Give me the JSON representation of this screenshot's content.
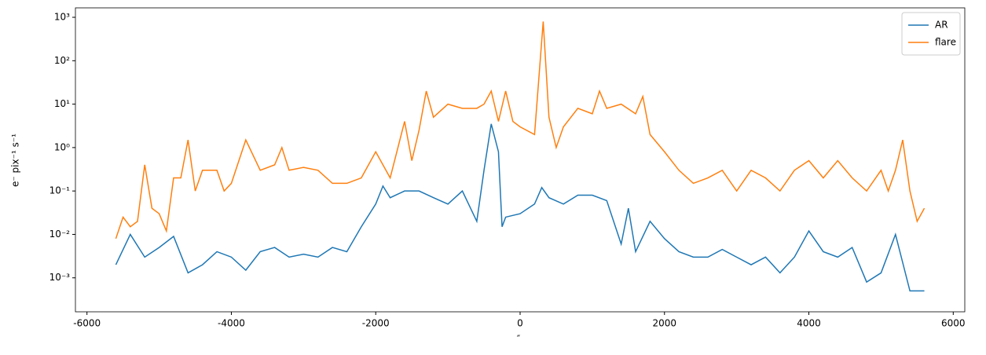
{
  "chart_data": {
    "type": "line",
    "yscale": "log",
    "xlabel": "″",
    "ylabel": "e⁻ pix⁻¹ s⁻¹",
    "legend": "upper right",
    "xlim": [
      -6160,
      6160
    ],
    "xticks": [
      -6000,
      -4000,
      -2000,
      0,
      2000,
      4000,
      6000
    ],
    "ylim": [
      0.000165,
      1650
    ],
    "yticks": [
      {
        "value": 0.001,
        "label": "10⁻³"
      },
      {
        "value": 0.01,
        "label": "10⁻²"
      },
      {
        "value": 0.1,
        "label": "10⁻¹"
      },
      {
        "value": 1,
        "label": "10⁰"
      },
      {
        "value": 10,
        "label": "10¹"
      },
      {
        "value": 100,
        "label": "10²"
      },
      {
        "value": 1000,
        "label": "10³"
      }
    ],
    "series": [
      {
        "name": "AR",
        "color": "#1f77b4",
        "x": [
          -5600,
          -5400,
          -5200,
          -5000,
          -4800,
          -4600,
          -4400,
          -4200,
          -4000,
          -3800,
          -3600,
          -3400,
          -3200,
          -3000,
          -2800,
          -2600,
          -2400,
          -2200,
          -2000,
          -1900,
          -1800,
          -1600,
          -1400,
          -1200,
          -1000,
          -800,
          -600,
          -500,
          -400,
          -300,
          -250,
          -200,
          0,
          200,
          300,
          400,
          600,
          800,
          1000,
          1200,
          1400,
          1500,
          1600,
          1800,
          2000,
          2200,
          2400,
          2600,
          2800,
          3000,
          3200,
          3400,
          3600,
          3800,
          4000,
          4200,
          4400,
          4600,
          4800,
          5000,
          5200,
          5400,
          5600
        ],
        "values": [
          0.002,
          0.01,
          0.003,
          0.005,
          0.009,
          0.0013,
          0.002,
          0.004,
          0.003,
          0.0015,
          0.004,
          0.005,
          0.003,
          0.0035,
          0.003,
          0.005,
          0.004,
          0.015,
          0.05,
          0.13,
          0.07,
          0.1,
          0.1,
          0.07,
          0.05,
          0.1,
          0.02,
          0.3,
          3.5,
          0.8,
          0.015,
          0.025,
          0.03,
          0.05,
          0.12,
          0.07,
          0.05,
          0.08,
          0.08,
          0.06,
          0.006,
          0.04,
          0.004,
          0.02,
          0.008,
          0.004,
          0.003,
          0.003,
          0.0045,
          0.003,
          0.002,
          0.003,
          0.0013,
          0.003,
          0.012,
          0.004,
          0.003,
          0.005,
          0.0008,
          0.0013,
          0.01,
          0.0005,
          0.0005
        ]
      },
      {
        "name": "flare",
        "color": "#ff7f0e",
        "x": [
          -5600,
          -5500,
          -5400,
          -5300,
          -5200,
          -5100,
          -5000,
          -4900,
          -4800,
          -4700,
          -4600,
          -4500,
          -4400,
          -4200,
          -4100,
          -4000,
          -3800,
          -3600,
          -3400,
          -3300,
          -3200,
          -3000,
          -2800,
          -2600,
          -2400,
          -2200,
          -2000,
          -1800,
          -1600,
          -1500,
          -1400,
          -1300,
          -1200,
          -1000,
          -800,
          -600,
          -500,
          -400,
          -300,
          -200,
          -100,
          0,
          200,
          320,
          400,
          500,
          600,
          800,
          1000,
          1100,
          1200,
          1400,
          1600,
          1700,
          1800,
          2000,
          2200,
          2400,
          2600,
          2800,
          3000,
          3200,
          3400,
          3600,
          3800,
          4000,
          4200,
          4400,
          4600,
          4800,
          5000,
          5100,
          5200,
          5300,
          5400,
          5500,
          5600
        ],
        "values": [
          0.008,
          0.025,
          0.015,
          0.02,
          0.4,
          0.04,
          0.03,
          0.012,
          0.2,
          0.2,
          1.5,
          0.1,
          0.3,
          0.3,
          0.1,
          0.15,
          1.5,
          0.3,
          0.4,
          1.0,
          0.3,
          0.35,
          0.3,
          0.15,
          0.15,
          0.2,
          0.8,
          0.2,
          4.0,
          0.5,
          2.5,
          20,
          5,
          10,
          8,
          8,
          10,
          20,
          4,
          20,
          4,
          3,
          2,
          800,
          5,
          1,
          3,
          8,
          6,
          20,
          8,
          10,
          6,
          15,
          2,
          0.8,
          0.3,
          0.15,
          0.2,
          0.3,
          0.1,
          0.3,
          0.2,
          0.1,
          0.3,
          0.5,
          0.2,
          0.5,
          0.2,
          0.1,
          0.3,
          0.1,
          0.3,
          1.5,
          0.1,
          0.02,
          0.04
        ]
      }
    ]
  }
}
